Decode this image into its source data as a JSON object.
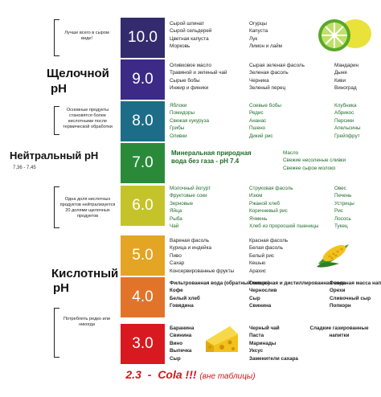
{
  "left": {
    "note_top": "Лучше всего в сыром виде!",
    "alkaline_label": "Щелочной",
    "alkaline_ph": "pH",
    "note_alkaline": "Основные продукты становятся более кислотными после термической обработки",
    "neutral_label": "Нейтральный pH",
    "neutral_range": "7,36 - 7,45",
    "note_acid": "Одна доля кислотных продуктов нейтрализуется 20 долями щелочных продуктов",
    "acid_label": "Кислотный",
    "acid_ph": "pH",
    "note_bottom": "Потреблять редко или никогда"
  },
  "rows": [
    {
      "ph": "10.0",
      "color": "#332b6e",
      "c1": [
        "Сырой шпинат",
        "Сырой сельдерей",
        "Цветная капуста",
        "Морковь"
      ],
      "c2": [
        "Огурцы",
        "Капуста",
        "Лук",
        "Лимон и лайм"
      ]
    },
    {
      "ph": "9.0",
      "color": "#3c2a86",
      "c1": [
        "Оливковое масло",
        "Травяной и зеленый чай",
        "Сырые бобы",
        "Инжир и финики"
      ],
      "c2": [
        "Сырая зеленая фасоль",
        "Зеленая фасоль",
        "Черника",
        "Зеленый перец"
      ],
      "c3": [
        "Мандарин",
        "Дыня",
        "Киви",
        "Виноград"
      ]
    },
    {
      "ph": "8.0",
      "color": "#1d6d88",
      "c1": [
        "Яблоки",
        "Помидоры",
        "Свежая кукуруза",
        "Грибы",
        "Оливки"
      ],
      "c2": [
        "Соевые бобы",
        "Редис",
        "Ананас",
        "Пшено",
        "Дикий рис"
      ],
      "c3": [
        "Клубника",
        "Абрикос",
        "Персики",
        "Апельсины",
        "Грейпфрут"
      ]
    },
    {
      "ph": "7.0",
      "color": "#2a8a3a",
      "center": "Минеральная природная вода без газа - pH 7.4",
      "c3": [
        "Масло",
        "Свежие несоленые сливки",
        "Свежее сырое молоко"
      ]
    },
    {
      "ph": "6.0",
      "color": "#c4c42a",
      "c1": [
        "Молочный йогурт",
        "Фруктовые соки",
        "Зерновые",
        "Яйца",
        "Рыба",
        "Чай"
      ],
      "c2": [
        "Струковая фасоль",
        "Изюм",
        "Ржаной хлеб",
        "Коричневый рис",
        "Ячмень",
        "Хлеб из проросшей пшеницы"
      ],
      "c3": [
        "Овес",
        "Печень",
        "Устрицы",
        "Рис",
        "Лосось",
        "Тукец"
      ]
    },
    {
      "ph": "5.0",
      "color": "#e4a424",
      "c1": [
        "Вареная фасоль",
        "Курица и индейка",
        "Пиво",
        "Сахар",
        "Консервированные фрукты"
      ],
      "c2": [
        "Красная фасоль",
        "Белая фасоль",
        "Белый рис",
        "Кешью",
        "Арахис"
      ]
    },
    {
      "ph": "4.0",
      "color": "#e2742a",
      "c1": [
        "Фильтрованная вода (обратный осмос)",
        "Кофе",
        "Белый хлеб",
        "Говядина"
      ],
      "c2": [
        "Очищенная и дистиллированная вода",
        "Чернослив",
        "Сыр",
        "Свинина"
      ],
      "c3": [
        "Основная масса напитков",
        "Орехи",
        "Сливочный сыр",
        "Попкорн"
      ]
    },
    {
      "ph": "3.0",
      "color": "#d81a20",
      "c1": [
        "Баранина",
        "Свинина",
        "Вино",
        "Выпечка",
        "Сыр"
      ],
      "c2": [
        "Черный чай",
        "Паста",
        "Маринады",
        "Уксус",
        "Заменители сахара"
      ],
      "c3": [
        "Сладкие газированные напитки"
      ]
    }
  ],
  "footer": {
    "value": "2.3",
    "dash": "-",
    "label": "Cola !!!",
    "note": "(вне таблицы)"
  },
  "icons": [
    "lime-slices-icon",
    "corn-icon",
    "cheese-icon"
  ]
}
